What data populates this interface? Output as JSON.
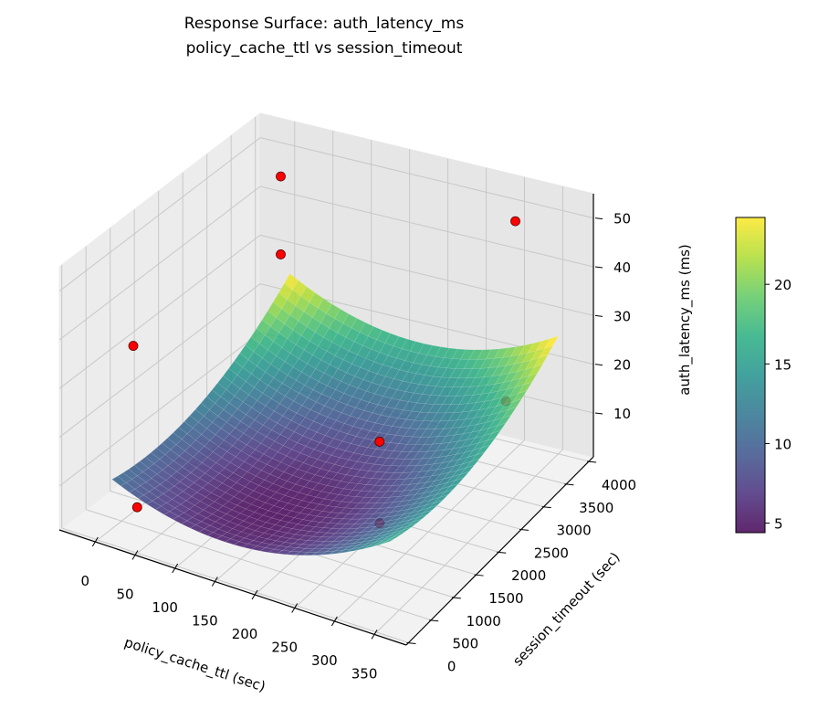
{
  "chart_data": {
    "type": "surface3d",
    "title": "Response Surface: auth_latency_ms",
    "subtitle": "policy_cache_ttl vs session_timeout",
    "xlabel": "policy_cache_ttl (sec)",
    "ylabel": "session_timeout (sec)",
    "zlabel": "auth_latency_ms (ms)",
    "colorbar_label": "auth_latency_ms (ms)",
    "colormap": "viridis",
    "xlim": [
      -45,
      390
    ],
    "ylim": [
      -50,
      4100
    ],
    "zlim": [
      1,
      55
    ],
    "xticks": [
      0,
      50,
      100,
      150,
      200,
      250,
      300,
      350
    ],
    "yticks": [
      0,
      500,
      1000,
      1500,
      2000,
      2500,
      3000,
      3500,
      4000
    ],
    "zticks": [
      10,
      20,
      30,
      40,
      50
    ],
    "colorbar_range": [
      4.4,
      24.2
    ],
    "colorbar_ticks": [
      5,
      10,
      15,
      20
    ],
    "grid": true,
    "surface": {
      "x_range": [
        0,
        350
      ],
      "y_range": [
        300,
        4000
      ],
      "fit": {
        "z_min": 4.5,
        "x_opt": 150,
        "y_opt": 1200,
        "a_xx": 0.00026,
        "b_yy": 1.6e-06,
        "c_xy": -4e-06
      },
      "alpha": 0.85
    },
    "points": {
      "color": "#ff0000",
      "x": [
        0,
        0,
        8,
        325,
        325,
        224,
        40,
        285
      ],
      "y": [
        3810,
        3810,
        610,
        3480,
        3270,
        2230,
        160,
        1195
      ],
      "z": [
        46,
        30,
        36.5,
        52.5,
        17.5,
        14,
        8.6,
        9.2
      ]
    }
  }
}
